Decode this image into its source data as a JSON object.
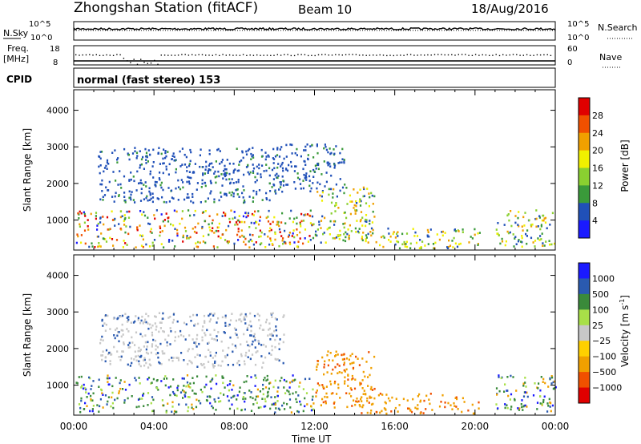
{
  "header": {
    "station": "Zhongshan Station (fitACF)",
    "beam": "Beam 10",
    "date": "18/Aug/2016"
  },
  "top_panels": {
    "nsky_label": "N.Sky",
    "nsky_ticks": [
      "10^5",
      "10^0"
    ],
    "nsearch_label": "N.Search",
    "nsearch_ticks": [
      "10^5",
      "10^0"
    ],
    "freq_label": "Freq.",
    "freq_unit": "[MHz]",
    "freq_ticks": [
      "18",
      "8"
    ],
    "nave_label": "Nave",
    "nave_ticks": [
      "60",
      "0"
    ],
    "cpid_label": "CPID",
    "cpid_value": "normal (fast stereo) 153"
  },
  "colors": {
    "power_scale": [
      "#1a1aff",
      "#2050b8",
      "#3a9a3a",
      "#8ad030",
      "#f0f000",
      "#f0a000",
      "#f05000",
      "#e00000"
    ],
    "velocity_scale": [
      "#e00000",
      "#f05000",
      "#f0a000",
      "#ffd000",
      "#c8c8c8",
      "#a8e048",
      "#3a8a3a",
      "#2a5ab0",
      "#1a1aff"
    ]
  },
  "chart_data": [
    {
      "type": "heatmap",
      "name": "power",
      "ylabel": "Slant Range [km]",
      "yticks": [
        "4000",
        "3000",
        "2000",
        "1000"
      ],
      "ylim": [
        180,
        4560
      ],
      "xlim": [
        "00:00",
        "24:00"
      ],
      "colorbar_label": "Power [dB]",
      "colorbar_ticks": [
        "28",
        "24",
        "20",
        "16",
        "12",
        "8",
        "4"
      ],
      "scatter_regions": [
        {
          "t0": 0.1,
          "t1": 12.0,
          "r0": 280,
          "r1": 1300,
          "color": "mixed_high"
        },
        {
          "t0": 1.2,
          "t1": 10.5,
          "r0": 1500,
          "r1": 3000,
          "color": "low_blue"
        },
        {
          "t0": 10.0,
          "t1": 13.5,
          "r0": 1800,
          "r1": 3100,
          "color": "low_blue"
        },
        {
          "t0": 12.0,
          "t1": 15.0,
          "r0": 400,
          "r1": 1950,
          "color": "mixed_mid"
        },
        {
          "t0": 14.0,
          "t1": 20.2,
          "r0": 250,
          "r1": 800,
          "color": "mixed_mid"
        },
        {
          "t0": 21.0,
          "t1": 24.0,
          "r0": 300,
          "r1": 1300,
          "color": "mixed_mid"
        }
      ]
    },
    {
      "type": "heatmap",
      "name": "velocity",
      "ylabel": "Slant Range [km]",
      "yticks": [
        "4000",
        "3000",
        "2000",
        "1000"
      ],
      "ylim": [
        180,
        4560
      ],
      "xlim": [
        "00:00",
        "24:00"
      ],
      "xlabel": "Time UT",
      "xticks": [
        "00:00",
        "04:00",
        "08:00",
        "12:00",
        "16:00",
        "20:00",
        "00:00"
      ],
      "colorbar_label": "Velocity [m s",
      "colorbar_label_sup": "-1",
      "colorbar_label_end": "]",
      "colorbar_ticks": [
        "1000",
        "500",
        "100",
        "25",
        "−25",
        "−100",
        "−500",
        "−1000"
      ],
      "scatter_regions": [
        {
          "t0": 0.1,
          "t1": 12.0,
          "r0": 280,
          "r1": 1300,
          "color": "vel_mixed"
        },
        {
          "t0": 1.2,
          "t1": 10.5,
          "r0": 1500,
          "r1": 3000,
          "color": "vel_gray"
        },
        {
          "t0": 12.0,
          "t1": 15.0,
          "r0": 400,
          "r1": 1950,
          "color": "vel_orange"
        },
        {
          "t0": 14.0,
          "t1": 20.2,
          "r0": 250,
          "r1": 800,
          "color": "vel_orange"
        },
        {
          "t0": 21.0,
          "t1": 24.0,
          "r0": 300,
          "r1": 1300,
          "color": "vel_mixed"
        }
      ]
    }
  ]
}
